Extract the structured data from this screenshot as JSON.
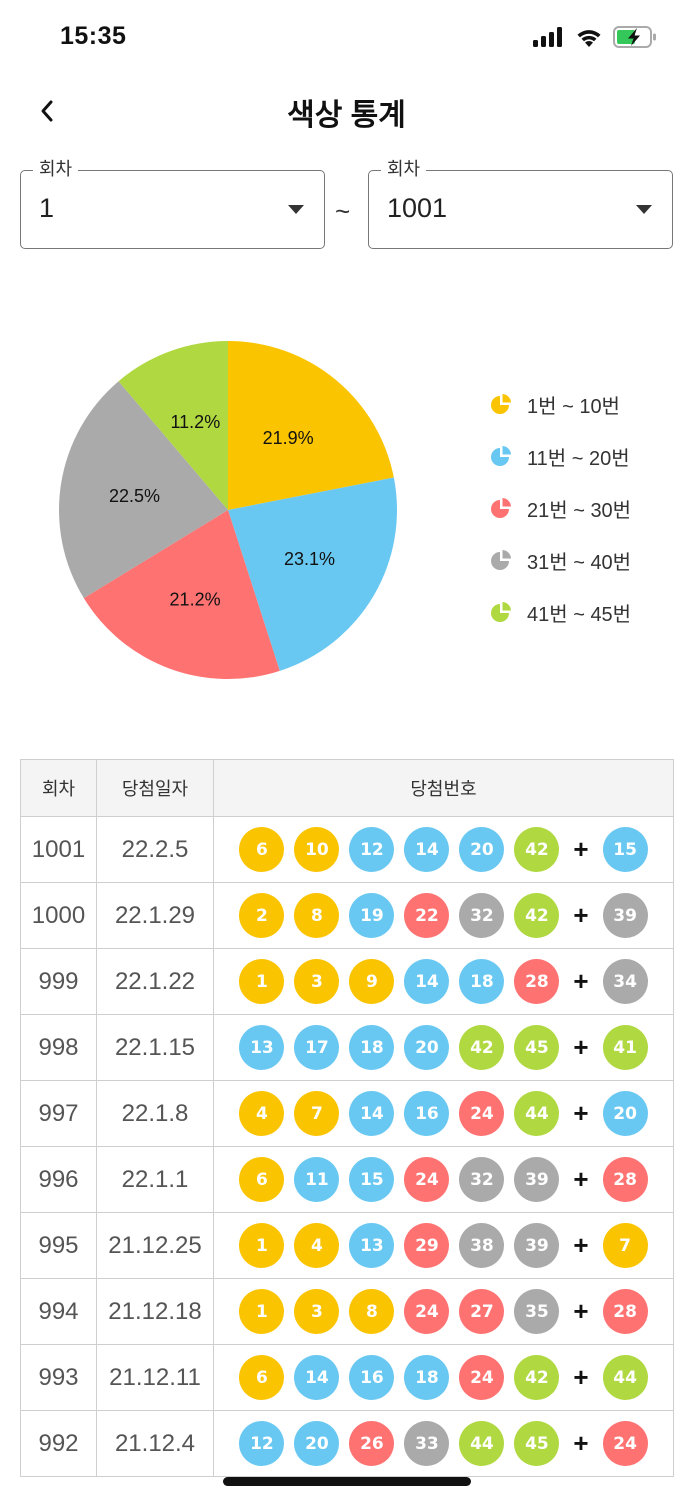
{
  "status_bar": {
    "time": "15:35",
    "signal_icon": "cellular-signal-icon",
    "wifi_icon": "wifi-icon",
    "battery_icon": "battery-charging-icon",
    "battery_color": "#34c759"
  },
  "nav": {
    "back_icon": "chevron-left-icon",
    "title": "색상 통계"
  },
  "range": {
    "from": {
      "label": "회차",
      "value": "1"
    },
    "separator": "~",
    "to": {
      "label": "회차",
      "value": "1001"
    }
  },
  "colors": {
    "yellow": "#fbc400",
    "blue": "#69c8f2",
    "red": "#ff7272",
    "gray": "#aaaaaa",
    "green": "#b0d840"
  },
  "chart_data": {
    "type": "pie",
    "title": "",
    "categories": [
      "1번 ~ 10번",
      "11번 ~ 20번",
      "21번 ~ 30번",
      "31번 ~ 40번",
      "41번 ~ 45번"
    ],
    "values": [
      21.9,
      23.1,
      21.2,
      22.5,
      11.2
    ],
    "labels": [
      "21.9%",
      "23.1%",
      "21.2%",
      "22.5%",
      "11.2%"
    ],
    "colors": [
      "#fbc400",
      "#69c8f2",
      "#ff7272",
      "#aaaaaa",
      "#b0d840"
    ],
    "legend_position": "right",
    "start_angle": "12 o'clock, clockwise"
  },
  "legend": [
    {
      "label": "1번 ~ 10번",
      "color": "#fbc400"
    },
    {
      "label": "11번 ~ 20번",
      "color": "#69c8f2"
    },
    {
      "label": "21번 ~ 30번",
      "color": "#ff7272"
    },
    {
      "label": "31번 ~ 40번",
      "color": "#aaaaaa"
    },
    {
      "label": "41번 ~ 45번",
      "color": "#b0d840"
    }
  ],
  "table": {
    "headers": [
      "회차",
      "당첨일자",
      "당첨번호"
    ],
    "bonus_separator": "+",
    "rows": [
      {
        "round": "1001",
        "date": "22.2.5",
        "numbers": [
          6,
          10,
          12,
          14,
          20,
          42
        ],
        "bonus": 15
      },
      {
        "round": "1000",
        "date": "22.1.29",
        "numbers": [
          2,
          8,
          19,
          22,
          32,
          42
        ],
        "bonus": 39
      },
      {
        "round": "999",
        "date": "22.1.22",
        "numbers": [
          1,
          3,
          9,
          14,
          18,
          28
        ],
        "bonus": 34
      },
      {
        "round": "998",
        "date": "22.1.15",
        "numbers": [
          13,
          17,
          18,
          20,
          42,
          45
        ],
        "bonus": 41
      },
      {
        "round": "997",
        "date": "22.1.8",
        "numbers": [
          4,
          7,
          14,
          16,
          24,
          44
        ],
        "bonus": 20
      },
      {
        "round": "996",
        "date": "22.1.1",
        "numbers": [
          6,
          11,
          15,
          24,
          32,
          39
        ],
        "bonus": 28
      },
      {
        "round": "995",
        "date": "21.12.25",
        "numbers": [
          1,
          4,
          13,
          29,
          38,
          39
        ],
        "bonus": 7
      },
      {
        "round": "994",
        "date": "21.12.18",
        "numbers": [
          1,
          3,
          8,
          24,
          27,
          35
        ],
        "bonus": 28
      },
      {
        "round": "993",
        "date": "21.12.11",
        "numbers": [
          6,
          14,
          16,
          18,
          24,
          42
        ],
        "bonus": 44
      },
      {
        "round": "992",
        "date": "21.12.4",
        "numbers": [
          12,
          20,
          26,
          33,
          44,
          45
        ],
        "bonus": 24
      }
    ]
  }
}
